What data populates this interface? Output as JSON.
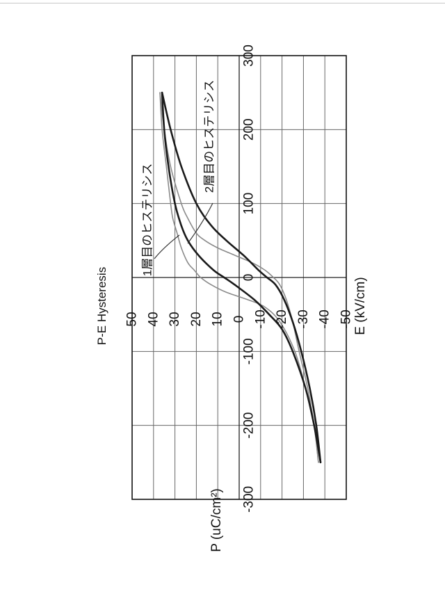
{
  "chart_data": {
    "type": "line",
    "title": "P-E Hysteresis",
    "xlabel": "E (kV/cm)",
    "ylabel": "P (uC/cm²)",
    "xlim": [
      -300,
      300
    ],
    "ylim": [
      -50,
      50
    ],
    "xticks": [
      -300,
      -200,
      -100,
      0,
      100,
      200,
      300
    ],
    "yticks": [
      -50,
      -40,
      -30,
      -20,
      -10,
      0,
      10,
      20,
      30,
      40,
      50
    ],
    "xtick_labels": [
      "-300",
      "-200",
      "-100",
      "0",
      "100",
      "200",
      "300"
    ],
    "ytick_labels": [
      "-50",
      "-40",
      "-30",
      "-20",
      "-10",
      "0",
      "10",
      "20",
      "30",
      "40",
      "50"
    ],
    "grid": true,
    "orientation": "rotated 90° counter-clockwise",
    "annotations": [
      {
        "text": "1層目のヒステリシス",
        "points_to": "series 0"
      },
      {
        "text": "2層目のヒステリシス",
        "points_to": "series 1"
      }
    ],
    "series": [
      {
        "name": "1層目のヒステリシス",
        "color": "#8a8a8a",
        "ascending": {
          "x": [
            -250,
            -200,
            -150,
            -100,
            -60,
            -30,
            -10,
            0,
            10,
            20,
            30,
            40,
            50,
            60,
            80,
            100,
            150,
            200,
            250
          ],
          "y": [
            -37,
            -35,
            -32,
            -28,
            -25,
            -22,
            -19,
            -16,
            -12,
            -6,
            2,
            10,
            16,
            20,
            24,
            27,
            32,
            35,
            37
          ]
        },
        "descending": {
          "x": [
            250,
            200,
            150,
            100,
            80,
            60,
            40,
            20,
            10,
            0,
            -10,
            -20,
            -30,
            -40,
            -60,
            -100,
            -150,
            -200,
            -250
          ],
          "y": [
            37,
            36,
            34,
            32,
            31,
            29,
            27,
            24,
            21,
            18,
            13,
            6,
            -4,
            -12,
            -19,
            -26,
            -31,
            -35,
            -37
          ]
        }
      },
      {
        "name": "2層目のヒステリシス",
        "color": "#1a1a1a",
        "ascending": {
          "x": [
            -250,
            -200,
            -150,
            -100,
            -60,
            -30,
            -10,
            0,
            10,
            30,
            50,
            70,
            100,
            150,
            200,
            250
          ],
          "y": [
            -38,
            -36,
            -33,
            -29,
            -25,
            -21,
            -17,
            -13,
            -9,
            -2,
            6,
            13,
            20,
            27,
            32,
            36
          ]
        },
        "descending": {
          "x": [
            250,
            200,
            150,
            100,
            70,
            50,
            30,
            10,
            0,
            -10,
            -30,
            -50,
            -70,
            -100,
            -150,
            -200,
            -250
          ],
          "y": [
            36,
            35,
            33,
            30,
            27,
            24,
            19,
            12,
            7,
            2,
            -7,
            -14,
            -20,
            -25,
            -31,
            -35,
            -38
          ]
        }
      }
    ]
  }
}
